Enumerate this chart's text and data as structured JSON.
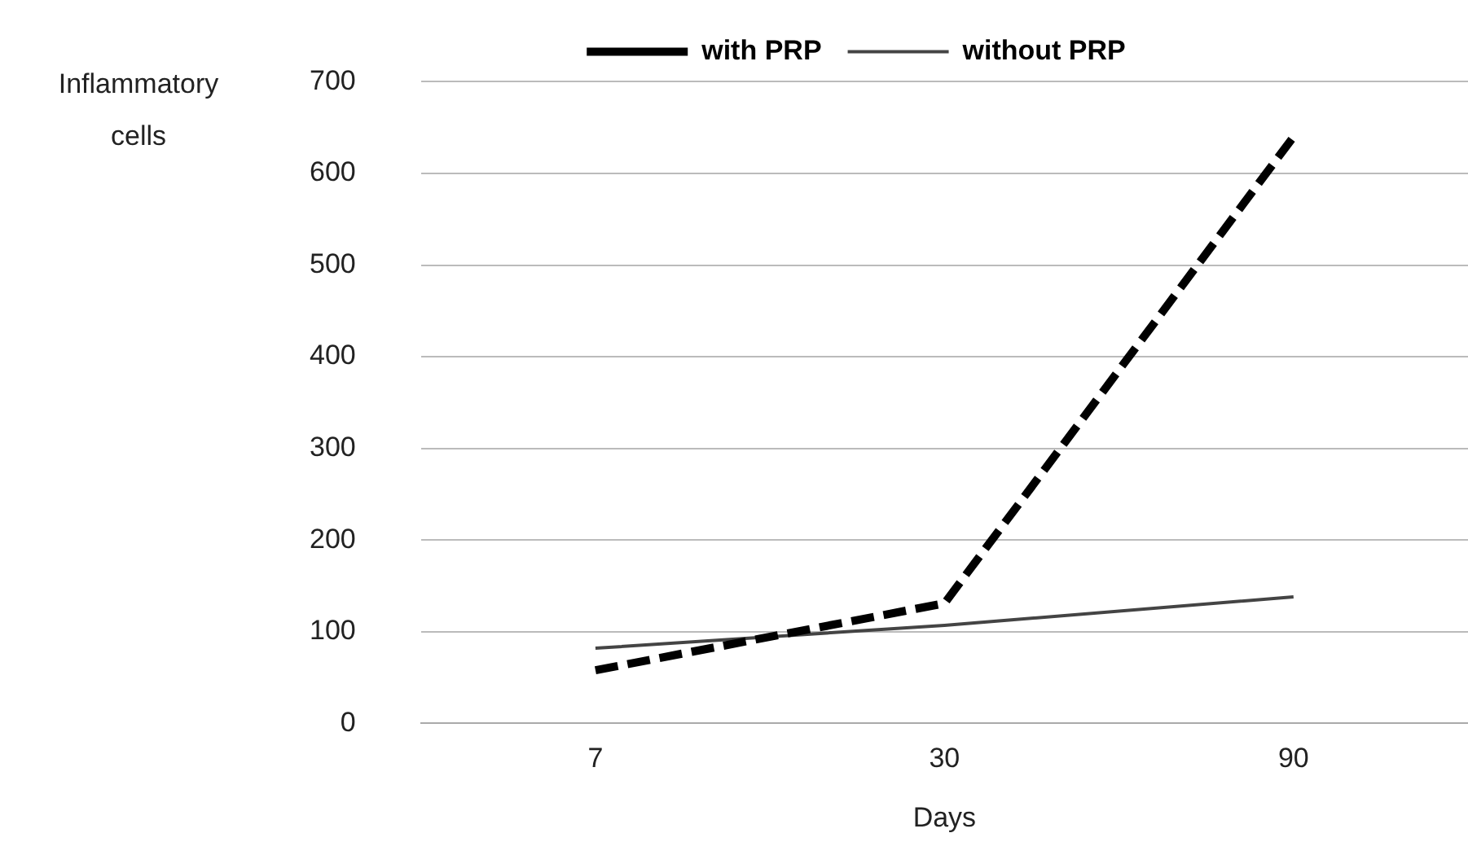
{
  "chart_data": {
    "type": "line",
    "xlabel": "Days",
    "ylabel": "Inflammatory cells",
    "categories": [
      "7",
      "30",
      "90"
    ],
    "series": [
      {
        "name": "with PRP",
        "color": "#000000",
        "values": [
          58,
          131,
          640
        ],
        "line_style": "dashed"
      },
      {
        "name": "without PRP",
        "color": "#444444",
        "values": [
          82,
          107,
          138
        ],
        "line_style": "solid"
      }
    ],
    "ylim": [
      0,
      700
    ],
    "yticks": [
      0,
      100,
      200,
      300,
      400,
      500,
      600,
      700
    ],
    "grid": "y",
    "legend": "top",
    "marker": "none"
  }
}
